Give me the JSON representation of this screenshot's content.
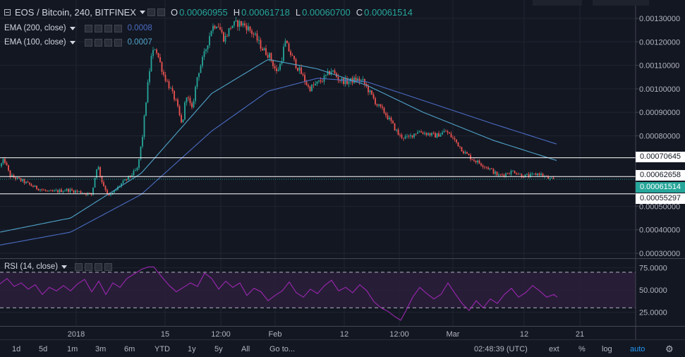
{
  "header": {
    "symbol": "EOS / Bitcoin, 240, BITFINEX",
    "o_label": "O",
    "o_value": "0.00060955",
    "h_label": "H",
    "h_value": "0.00061718",
    "l_label": "L",
    "l_value": "0.00060700",
    "c_label": "C",
    "c_value": "0.00061514"
  },
  "indicators": {
    "ema200": {
      "label": "EMA (200, close)",
      "value": "0.0008"
    },
    "ema100": {
      "label": "EMA (100, close)",
      "value": "0.0007"
    },
    "rsi": {
      "label": "RSI (14, close)"
    }
  },
  "colors": {
    "background": "#131722",
    "up": "#26a69a",
    "down": "#ef5350",
    "ema200": "#4a6cc3",
    "ema100": "#4fa3c8",
    "rsi": "#9c27b0",
    "rsi_band": "#2a1e3a",
    "grid": "#1f2431",
    "hline": "#ffffff"
  },
  "chart_data": [
    {
      "type": "candlestick",
      "title": "EOS / Bitcoin, 240, BITFINEX",
      "y_ticks": [
        "0.00130000",
        "0.00120000",
        "0.00110000",
        "0.00100000",
        "0.00090000",
        "0.00080000",
        "0.00050000",
        "0.00040000",
        "0.00030000"
      ],
      "ylim": [
        0.000285,
        0.00136
      ],
      "x_ticks": [
        "2018",
        "15",
        "12:00",
        "Feb",
        "12",
        "12:00",
        "Mar",
        "12",
        "21"
      ],
      "grid": true,
      "horizontal_lines": [
        {
          "value": 0.00070645,
          "label": "0.00070645"
        },
        {
          "value": 0.00062658,
          "label": "0.00062658"
        },
        {
          "value": 0.00055297,
          "label": "0.00055297"
        }
      ],
      "last_price": {
        "value": 0.00061514,
        "label": "0.00061514"
      },
      "price_path": [
        [
          0,
          0.00067
        ],
        [
          6,
          0.0007
        ],
        [
          14,
          0.00063
        ],
        [
          30,
          0.00061
        ],
        [
          50,
          0.00058
        ],
        [
          70,
          0.00056
        ],
        [
          95,
          0.00057
        ],
        [
          115,
          0.00056
        ],
        [
          130,
          0.00055
        ],
        [
          138,
          0.00068
        ],
        [
          145,
          0.0006
        ],
        [
          155,
          0.00054
        ],
        [
          170,
          0.00059
        ],
        [
          185,
          0.00063
        ],
        [
          195,
          0.00066
        ],
        [
          202,
          0.0008
        ],
        [
          208,
          0.00098
        ],
        [
          214,
          0.00113
        ],
        [
          220,
          0.00118
        ],
        [
          226,
          0.00112
        ],
        [
          232,
          0.00106
        ],
        [
          240,
          0.00101
        ],
        [
          250,
          0.00094
        ],
        [
          258,
          0.00084
        ],
        [
          264,
          0.00098
        ],
        [
          272,
          0.00091
        ],
        [
          280,
          0.00106
        ],
        [
          290,
          0.00115
        ],
        [
          300,
          0.00126
        ],
        [
          308,
          0.00128
        ],
        [
          318,
          0.00121
        ],
        [
          328,
          0.00127
        ],
        [
          338,
          0.00128
        ],
        [
          348,
          0.00127
        ],
        [
          360,
          0.00123
        ],
        [
          372,
          0.00117
        ],
        [
          382,
          0.00114
        ],
        [
          392,
          0.00107
        ],
        [
          398,
          0.00111
        ],
        [
          404,
          0.0012
        ],
        [
          410,
          0.00116
        ],
        [
          418,
          0.00111
        ],
        [
          428,
          0.00106
        ],
        [
          438,
          0.001
        ],
        [
          448,
          0.00102
        ],
        [
          458,
          0.00104
        ],
        [
          470,
          0.00108
        ],
        [
          480,
          0.00104
        ],
        [
          492,
          0.00103
        ],
        [
          505,
          0.00104
        ],
        [
          515,
          0.00103
        ],
        [
          525,
          0.00098
        ],
        [
          535,
          0.00093
        ],
        [
          545,
          0.0009
        ],
        [
          556,
          0.00085
        ],
        [
          566,
          0.0008
        ],
        [
          578,
          0.00079
        ],
        [
          592,
          0.00082
        ],
        [
          605,
          0.00081
        ],
        [
          618,
          0.0008
        ],
        [
          632,
          0.00082
        ],
        [
          645,
          0.00078
        ],
        [
          658,
          0.00073
        ],
        [
          670,
          0.0007
        ],
        [
          682,
          0.00068
        ],
        [
          694,
          0.00066
        ],
        [
          706,
          0.00063
        ],
        [
          718,
          0.00064
        ],
        [
          728,
          0.00065
        ],
        [
          740,
          0.00063
        ],
        [
          752,
          0.00063
        ],
        [
          764,
          0.00064
        ],
        [
          776,
          0.00062
        ],
        [
          786,
          0.00061
        ]
      ],
      "series": [
        {
          "name": "EMA (200, close)",
          "path": [
            [
              0,
              0.000335
            ],
            [
              100,
              0.00039
            ],
            [
              200,
              0.00055
            ],
            [
              300,
              0.00082
            ],
            [
              380,
              0.00099
            ],
            [
              450,
              0.001045
            ],
            [
              520,
              0.00103
            ],
            [
              600,
              0.00095
            ],
            [
              700,
              0.00085
            ],
            [
              789,
              0.000765
            ]
          ]
        },
        {
          "name": "EMA (100, close)",
          "path": [
            [
              0,
              0.00039
            ],
            [
              100,
              0.00045
            ],
            [
              200,
              0.00064
            ],
            [
              300,
              0.00098
            ],
            [
              380,
              0.001125
            ],
            [
              450,
              0.001085
            ],
            [
              520,
              0.001015
            ],
            [
              600,
              0.0009
            ],
            [
              700,
              0.00078
            ],
            [
              789,
              0.000695
            ]
          ]
        }
      ]
    },
    {
      "type": "line",
      "name": "RSI (14, close)",
      "y_ticks": [
        "75.0000",
        "50.0000",
        "25.0000"
      ],
      "ylim": [
        12,
        81
      ],
      "levels": [
        70,
        30
      ],
      "path": [
        [
          0,
          57
        ],
        [
          10,
          63
        ],
        [
          20,
          54
        ],
        [
          30,
          58
        ],
        [
          40,
          51
        ],
        [
          50,
          56
        ],
        [
          60,
          45
        ],
        [
          70,
          53
        ],
        [
          80,
          49
        ],
        [
          90,
          55
        ],
        [
          100,
          49
        ],
        [
          110,
          57
        ],
        [
          120,
          62
        ],
        [
          130,
          48
        ],
        [
          140,
          60
        ],
        [
          150,
          45
        ],
        [
          160,
          58
        ],
        [
          170,
          53
        ],
        [
          180,
          63
        ],
        [
          190,
          68
        ],
        [
          200,
          73
        ],
        [
          210,
          76
        ],
        [
          218,
          76
        ],
        [
          228,
          66
        ],
        [
          240,
          55
        ],
        [
          250,
          48
        ],
        [
          260,
          53
        ],
        [
          270,
          58
        ],
        [
          280,
          54
        ],
        [
          290,
          69
        ],
        [
          300,
          63
        ],
        [
          310,
          51
        ],
        [
          320,
          60
        ],
        [
          330,
          53
        ],
        [
          340,
          58
        ],
        [
          350,
          44
        ],
        [
          360,
          52
        ],
        [
          370,
          48
        ],
        [
          380,
          38
        ],
        [
          390,
          44
        ],
        [
          400,
          49
        ],
        [
          410,
          59
        ],
        [
          420,
          47
        ],
        [
          430,
          42
        ],
        [
          440,
          51
        ],
        [
          450,
          46
        ],
        [
          460,
          55
        ],
        [
          470,
          61
        ],
        [
          480,
          49
        ],
        [
          490,
          53
        ],
        [
          500,
          47
        ],
        [
          510,
          56
        ],
        [
          520,
          49
        ],
        [
          530,
          37
        ],
        [
          540,
          30
        ],
        [
          550,
          26
        ],
        [
          560,
          20
        ],
        [
          568,
          16
        ],
        [
          575,
          26
        ],
        [
          585,
          42
        ],
        [
          595,
          53
        ],
        [
          605,
          46
        ],
        [
          615,
          40
        ],
        [
          625,
          45
        ],
        [
          635,
          58
        ],
        [
          645,
          46
        ],
        [
          655,
          35
        ],
        [
          665,
          27
        ],
        [
          675,
          38
        ],
        [
          685,
          30
        ],
        [
          695,
          40
        ],
        [
          705,
          35
        ],
        [
          715,
          45
        ],
        [
          725,
          52
        ],
        [
          735,
          42
        ],
        [
          745,
          47
        ],
        [
          755,
          55
        ],
        [
          765,
          49
        ],
        [
          775,
          42
        ],
        [
          785,
          45
        ],
        [
          790,
          42
        ]
      ]
    }
  ],
  "bottom_toolbar": {
    "ranges": [
      "1d",
      "5d",
      "1m",
      "3m",
      "6m",
      "YTD",
      "1y",
      "5y",
      "All"
    ],
    "goto": "Go to...",
    "time": "02:48:39 (UTC)",
    "ext": "ext",
    "percent": "%",
    "log": "log",
    "auto": "auto"
  }
}
